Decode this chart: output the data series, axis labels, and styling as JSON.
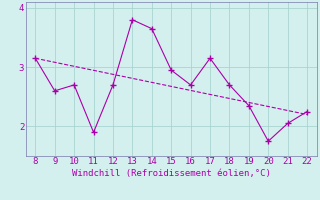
{
  "x": [
    8,
    9,
    10,
    11,
    12,
    13,
    14,
    15,
    16,
    17,
    18,
    19,
    20,
    21,
    22
  ],
  "y": [
    3.15,
    2.6,
    2.7,
    1.9,
    2.7,
    3.8,
    3.65,
    2.95,
    2.7,
    3.15,
    2.7,
    2.35,
    1.75,
    2.05,
    2.25
  ],
  "trend_x": [
    8,
    22
  ],
  "trend_y": [
    3.15,
    2.2
  ],
  "line_color": "#aa00aa",
  "bg_color": "#d4f0ee",
  "grid_color": "#aad4d0",
  "spine_color": "#7777aa",
  "xlabel": "Windchill (Refroidissement éolien,°C)",
  "xlim": [
    7.5,
    22.5
  ],
  "ylim": [
    1.5,
    4.1
  ],
  "yticks": [
    2,
    3,
    4
  ],
  "xticks": [
    8,
    9,
    10,
    11,
    12,
    13,
    14,
    15,
    16,
    17,
    18,
    19,
    20,
    21,
    22
  ],
  "tick_color": "#aa00aa",
  "label_color": "#aa00aa",
  "font_size": 6.5
}
